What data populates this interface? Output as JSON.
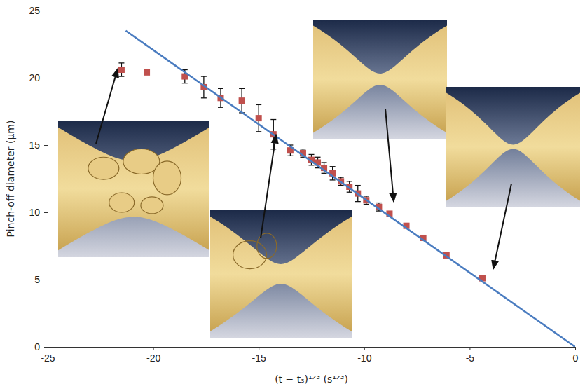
{
  "chart_data": {
    "type": "scatter",
    "x_label": "(t − tₛ)¹ᐟ³  (s¹ᐟ³)",
    "y_label": "Pinch-off diameter (μm)",
    "xlim": [
      -25,
      0
    ],
    "xticks": [
      -25,
      -20,
      -15,
      -10,
      -5,
      0
    ],
    "ylim": [
      0,
      25
    ],
    "yticks": [
      0,
      5,
      10,
      15,
      20,
      25
    ],
    "grid": false,
    "series": [
      {
        "type": "scatter",
        "color": "#c0504d",
        "marker": "square",
        "x": [
          -21.5,
          -20.3,
          -18.5,
          -17.6,
          -16.8,
          -15.8,
          -15.0,
          -14.3,
          -13.5,
          -12.9,
          -12.5,
          -12.2,
          -11.9,
          -11.5,
          -11.1,
          -10.7,
          -10.3,
          -9.9,
          -9.3,
          -8.8,
          -8.0,
          -7.2,
          -6.1,
          -4.4
        ],
        "values": [
          20.6,
          20.4,
          20.1,
          19.3,
          18.5,
          18.3,
          17.0,
          15.8,
          14.6,
          14.4,
          13.9,
          13.7,
          13.3,
          12.9,
          12.3,
          11.9,
          11.4,
          10.9,
          10.4,
          9.9,
          9.0,
          8.1,
          6.8,
          5.1
        ],
        "errors": [
          0.5,
          null,
          0.5,
          0.8,
          0.7,
          0.9,
          1.0,
          1.1,
          0.4,
          0.3,
          0.4,
          0.4,
          0.4,
          0.5,
          0.3,
          0.4,
          0.6,
          0.3,
          0.3,
          null,
          null,
          null,
          null,
          null
        ]
      },
      {
        "type": "line",
        "color": "#4a7cc0",
        "line_style": "solid",
        "x": [
          -21.3,
          0
        ],
        "values": [
          23.5,
          0
        ]
      }
    ]
  }
}
